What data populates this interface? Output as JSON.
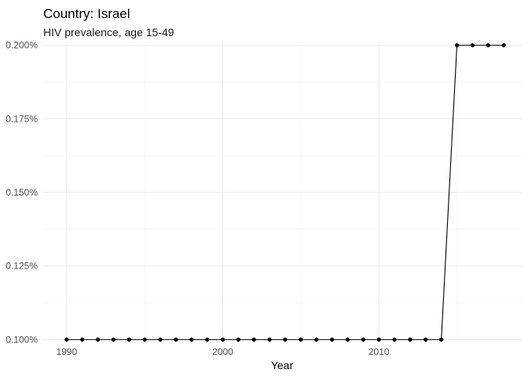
{
  "chart_data": {
    "type": "line",
    "title": "Country: Israel",
    "subtitle": "HIV prevalence, age 15-49",
    "xlabel": "Year",
    "ylabel": "",
    "xlim": [
      1988.5,
      2019.2
    ],
    "ylim": [
      0.0993,
      0.2007
    ],
    "x_ticks": [
      1990,
      2000,
      2010
    ],
    "x_tick_labels": [
      "1990",
      "2000",
      "2010"
    ],
    "y_ticks": [
      0.1,
      0.125,
      0.15,
      0.175,
      0.2
    ],
    "y_tick_labels": [
      "0.100%",
      "0.125%",
      "0.150%",
      "0.175%",
      "0.200%"
    ],
    "grid": true,
    "series": [
      {
        "x": [
          1990,
          1991,
          1992,
          1993,
          1994,
          1995,
          1996,
          1997,
          1998,
          1999,
          2000,
          2001,
          2002,
          2003,
          2004,
          2005,
          2006,
          2007,
          2008,
          2009,
          2010,
          2011,
          2012,
          2013,
          2014,
          2015,
          2016,
          2017,
          2018
        ],
        "values": [
          0.1,
          0.1,
          0.1,
          0.1,
          0.1,
          0.1,
          0.1,
          0.1,
          0.1,
          0.1,
          0.1,
          0.1,
          0.1,
          0.1,
          0.1,
          0.1,
          0.1,
          0.1,
          0.1,
          0.1,
          0.1,
          0.1,
          0.1,
          0.1,
          0.1,
          0.2,
          0.2,
          0.2,
          0.2
        ]
      }
    ],
    "colors": {
      "line": "#000000",
      "point": "#000000"
    }
  }
}
